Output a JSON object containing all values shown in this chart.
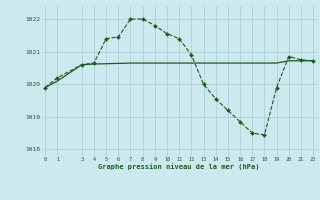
{
  "xlabel": "Graphe pression niveau de la mer (hPa)",
  "background_color": "#cce9f0",
  "line_color": "#1a5c1a",
  "grid_color": "#aaccd4",
  "hours": [
    0,
    1,
    3,
    4,
    5,
    6,
    7,
    8,
    9,
    10,
    11,
    12,
    13,
    14,
    15,
    16,
    17,
    18,
    19,
    20,
    21,
    22
  ],
  "pressure_dashed": [
    1019.9,
    1020.2,
    1020.6,
    1020.65,
    1021.4,
    1021.45,
    1022.0,
    1022.0,
    1021.8,
    1021.55,
    1021.4,
    1020.9,
    1020.0,
    1019.55,
    1019.2,
    1018.85,
    1018.5,
    1018.45,
    1019.9,
    1020.85,
    1020.75,
    1020.72
  ],
  "pressure_solid_x": [
    0,
    1,
    3,
    4,
    5,
    6,
    7,
    8,
    9,
    10,
    11,
    12,
    13,
    14,
    15,
    16,
    17,
    18,
    19,
    20,
    21,
    22
  ],
  "pressure_solid": [
    1019.9,
    1020.1,
    1020.6,
    1020.62,
    1020.63,
    1020.64,
    1020.65,
    1020.65,
    1020.65,
    1020.65,
    1020.65,
    1020.65,
    1020.65,
    1020.65,
    1020.65,
    1020.65,
    1020.65,
    1020.65,
    1020.65,
    1020.72,
    1020.72,
    1020.72
  ],
  "ylim": [
    1017.8,
    1022.4
  ],
  "yticks": [
    1018,
    1019,
    1020,
    1021,
    1022
  ],
  "xticks": [
    0,
    1,
    3,
    4,
    5,
    6,
    7,
    8,
    9,
    10,
    11,
    12,
    13,
    14,
    15,
    16,
    17,
    18,
    19,
    20,
    21,
    22
  ]
}
